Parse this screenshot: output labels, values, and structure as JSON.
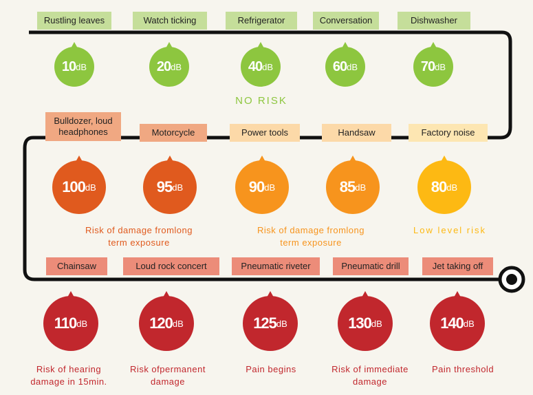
{
  "colors": {
    "green": "#8dc63f",
    "green_label": "#c5de9a",
    "dark_orange": "#e05a1e",
    "mid_orange": "#f7941d",
    "yellow": "#fdb913",
    "red": "#c1272d",
    "label_salmon": "#f0a882",
    "label_light": "#fcd9a8",
    "label_pale": "#fde6b2",
    "label_red": "#ec8c79"
  },
  "rows": [
    {
      "items": [
        {
          "label": "Rustling leaves",
          "db": "10",
          "unit": "dB"
        },
        {
          "label": "Watch ticking",
          "db": "20",
          "unit": "dB"
        },
        {
          "label": "Refrigerator",
          "db": "40",
          "unit": "dB"
        },
        {
          "label": "Conversation",
          "db": "60",
          "unit": "dB"
        },
        {
          "label": "Dishwasher",
          "db": "70",
          "unit": "dB"
        }
      ],
      "note": "NO RISK"
    },
    {
      "items": [
        {
          "label": "Bulldozer, loud headphones",
          "db": "100",
          "unit": "dB"
        },
        {
          "label": "Motorcycle",
          "db": "95",
          "unit": "dB"
        },
        {
          "label": "Power tools",
          "db": "90",
          "unit": "dB"
        },
        {
          "label": "Handsaw",
          "db": "85",
          "unit": "dB"
        },
        {
          "label": "Factory noise",
          "db": "80",
          "unit": "dB"
        }
      ],
      "notes": [
        "Risk of damage fromlong term exposure",
        "Risk of damage fromlong term exposure",
        "Low level risk"
      ]
    },
    {
      "items": [
        {
          "label": "Chainsaw",
          "db": "110",
          "unit": "dB",
          "note": "Risk of hearing damage in 15min."
        },
        {
          "label": "Loud rock concert",
          "db": "120",
          "unit": "dB",
          "note": "Risk ofpermanent damage"
        },
        {
          "label": "Pneumatic riveter",
          "db": "125",
          "unit": "dB",
          "note": "Pain begins"
        },
        {
          "label": "Pneumatic drill",
          "db": "130",
          "unit": "dB",
          "note": "Risk of immediate damage"
        },
        {
          "label": "Jet taking off",
          "db": "140",
          "unit": "dB",
          "note": "Pain threshold"
        }
      ]
    }
  ]
}
